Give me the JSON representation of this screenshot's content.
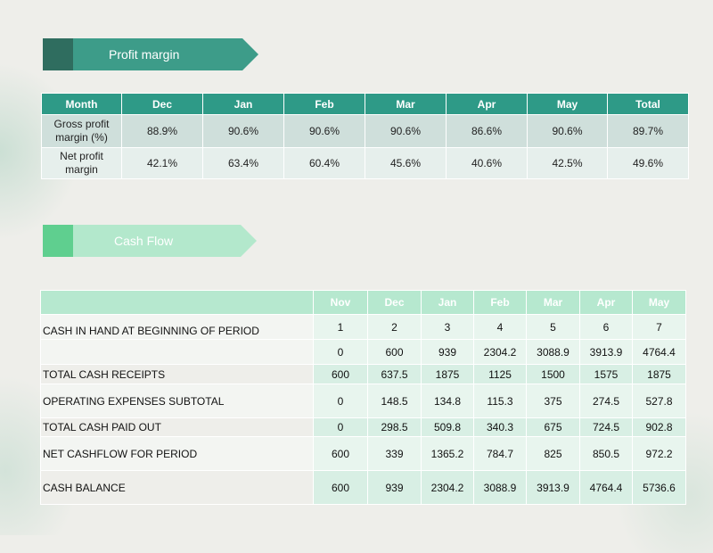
{
  "profit_section": {
    "title": "Profit margin",
    "headers": [
      "Month",
      "Dec",
      "Jan",
      "Feb",
      "Mar",
      "Apr",
      "May",
      "Total"
    ],
    "rows": [
      {
        "label_line1": "Gross profit",
        "label_line2": "margin (%)",
        "values": [
          "88.9%",
          "90.6%",
          "90.6%",
          "90.6%",
          "86.6%",
          "90.6%",
          "89.7%"
        ]
      },
      {
        "label_line1": "Net profit",
        "label_line2": "margin",
        "values": [
          "42.1%",
          "63.4%",
          "60.4%",
          "45.6%",
          "40.6%",
          "42.5%",
          "49.6%"
        ]
      }
    ]
  },
  "cash_section": {
    "title": "Cash Flow",
    "headers": [
      "",
      "Nov",
      "Dec",
      "Jan",
      "Feb",
      "Mar",
      "Apr",
      "May"
    ],
    "rows": [
      {
        "label": "CASH IN HAND AT BEGINNING OF PERIOD",
        "values": [
          "1",
          "2",
          "3",
          "4",
          "5",
          "6",
          "7"
        ]
      },
      {
        "label": "",
        "values": [
          "0",
          "600",
          "939",
          "2304.2",
          "3088.9",
          "3913.9",
          "4764.4"
        ]
      },
      {
        "label": "TOTAL CASH RECEIPTS",
        "values": [
          "600",
          "637.5",
          "1875",
          "1125",
          "1500",
          "1575",
          "1875"
        ]
      },
      {
        "label": "OPERATING EXPENSES SUBTOTAL",
        "values": [
          "0",
          "148.5",
          "134.8",
          "115.3",
          "375",
          "274.5",
          "527.8"
        ]
      },
      {
        "label": "TOTAL CASH PAID OUT",
        "values": [
          "0",
          "298.5",
          "509.8",
          "340.3",
          "675",
          "724.5",
          "902.8"
        ]
      },
      {
        "label": "NET CASHFLOW FOR PERIOD",
        "values": [
          "600",
          "339",
          "1365.2",
          "784.7",
          "825",
          "850.5",
          "972.2"
        ]
      },
      {
        "label": "CASH BALANCE",
        "values": [
          "600",
          "939",
          "2304.2",
          "3088.9",
          "3913.9",
          "4764.4",
          "5736.6"
        ]
      }
    ]
  },
  "colors": {
    "profit_header": "#2e9a87",
    "profit_banner": "#3d9c89",
    "cash_banner": "#b3e8cc",
    "cash_header": "#b6e8cf"
  }
}
